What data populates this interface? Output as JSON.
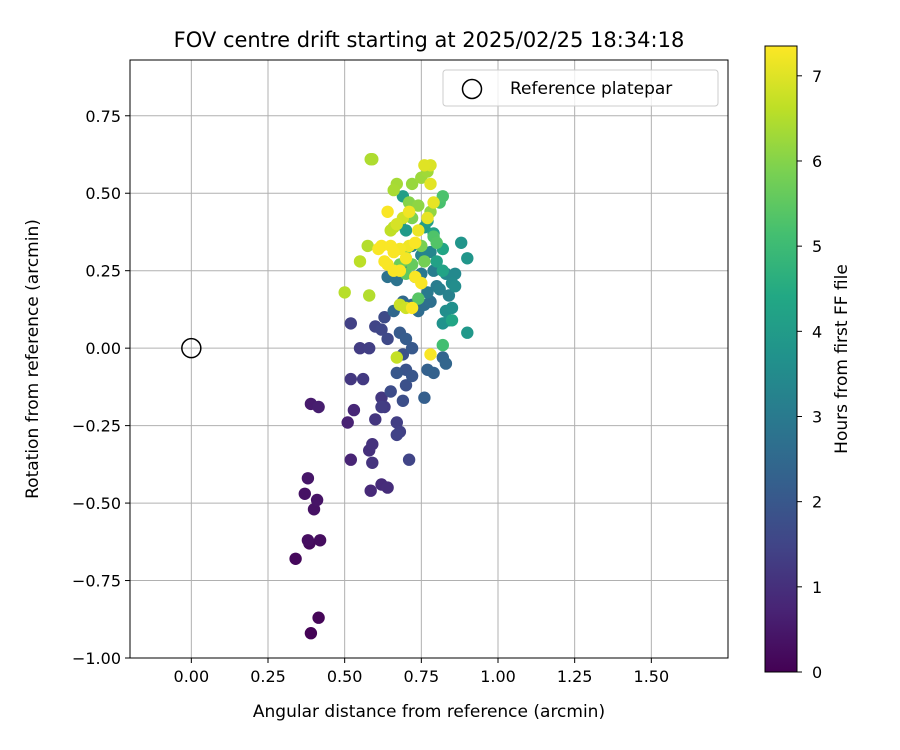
{
  "chart_data": {
    "type": "scatter",
    "title": "FOV centre drift starting at 2025/02/25 18:34:18",
    "xlabel": "Angular distance from reference (arcmin)",
    "ylabel": "Rotation from reference (arcmin)",
    "xlim": [
      -0.2,
      1.75
    ],
    "ylim": [
      -1.0,
      0.93
    ],
    "xticks": [
      0.0,
      0.25,
      0.5,
      0.75,
      1.0,
      1.25,
      1.5
    ],
    "xtick_labels": [
      "0.00",
      "0.25",
      "0.50",
      "0.75",
      "1.00",
      "1.25",
      "1.50"
    ],
    "yticks": [
      -1.0,
      -0.75,
      -0.5,
      -0.25,
      0.0,
      0.25,
      0.5,
      0.75
    ],
    "ytick_labels": [
      "−1.00",
      "−0.75",
      "−0.50",
      "−0.25",
      "0.00",
      "0.25",
      "0.50",
      "0.75"
    ],
    "grid": true,
    "legend": {
      "placement": "top-right",
      "entries": [
        "Reference platepar"
      ]
    },
    "colorbar": {
      "label": "Hours from first FF file",
      "colormap": "viridis",
      "range": [
        0,
        7.35
      ],
      "ticks": [
        0,
        1,
        2,
        3,
        4,
        5,
        6,
        7
      ],
      "tick_labels": [
        "0",
        "1",
        "2",
        "3",
        "4",
        "5",
        "6",
        "7"
      ]
    },
    "reference_point": {
      "x": 0.0,
      "y": 0.0
    },
    "series": [
      {
        "values_note": "each point: [x, y, hours]",
        "points": [
          [
            0.39,
            -0.92,
            0.05
          ],
          [
            0.415,
            -0.87,
            0.1
          ],
          [
            0.34,
            -0.68,
            0.15
          ],
          [
            0.385,
            -0.63,
            0.2
          ],
          [
            0.42,
            -0.62,
            0.25
          ],
          [
            0.38,
            -0.62,
            0.3
          ],
          [
            0.4,
            -0.52,
            0.35
          ],
          [
            0.37,
            -0.47,
            0.35
          ],
          [
            0.41,
            -0.49,
            0.4
          ],
          [
            0.38,
            -0.42,
            0.45
          ],
          [
            0.39,
            -0.18,
            0.55
          ],
          [
            0.415,
            -0.19,
            0.6
          ],
          [
            0.51,
            -0.24,
            0.7
          ],
          [
            0.52,
            -0.36,
            0.75
          ],
          [
            0.53,
            -0.2,
            0.8
          ],
          [
            0.585,
            -0.46,
            0.85
          ],
          [
            0.62,
            -0.44,
            0.9
          ],
          [
            0.64,
            -0.45,
            0.95
          ],
          [
            0.58,
            -0.33,
            1.0
          ],
          [
            0.59,
            -0.31,
            1.05
          ],
          [
            0.59,
            -0.37,
            1.1
          ],
          [
            0.6,
            -0.23,
            1.15
          ],
          [
            0.62,
            -0.16,
            1.2
          ],
          [
            0.63,
            -0.19,
            1.25
          ],
          [
            0.62,
            -0.19,
            1.3
          ],
          [
            0.67,
            -0.24,
            1.35
          ],
          [
            0.68,
            -0.27,
            1.4
          ],
          [
            0.67,
            -0.28,
            1.45
          ],
          [
            0.71,
            -0.36,
            1.5
          ],
          [
            0.52,
            -0.1,
            1.2
          ],
          [
            0.56,
            -0.1,
            1.25
          ],
          [
            0.55,
            0.0,
            1.3
          ],
          [
            0.58,
            0.0,
            1.35
          ],
          [
            0.52,
            0.08,
            1.4
          ],
          [
            0.6,
            0.07,
            1.5
          ],
          [
            0.62,
            0.06,
            1.55
          ],
          [
            0.64,
            0.03,
            1.6
          ],
          [
            0.63,
            0.1,
            1.65
          ],
          [
            0.65,
            -0.14,
            1.7
          ],
          [
            0.69,
            -0.17,
            1.75
          ],
          [
            0.7,
            -0.12,
            1.8
          ],
          [
            0.69,
            -0.02,
            1.85
          ],
          [
            0.7,
            -0.07,
            1.9
          ],
          [
            0.72,
            -0.09,
            1.95
          ],
          [
            0.67,
            -0.08,
            2.0
          ],
          [
            0.72,
            0.0,
            2.05
          ],
          [
            0.68,
            0.05,
            2.1
          ],
          [
            0.7,
            0.03,
            2.15
          ],
          [
            0.76,
            -0.16,
            2.2
          ],
          [
            0.77,
            -0.07,
            2.25
          ],
          [
            0.79,
            -0.08,
            2.3
          ],
          [
            0.82,
            -0.03,
            2.35
          ],
          [
            0.83,
            -0.05,
            2.4
          ],
          [
            0.66,
            0.12,
            2.45
          ],
          [
            0.69,
            0.15,
            2.5
          ],
          [
            0.72,
            0.14,
            2.55
          ],
          [
            0.74,
            0.12,
            2.6
          ],
          [
            0.76,
            0.14,
            2.65
          ],
          [
            0.78,
            0.15,
            2.7
          ],
          [
            0.64,
            0.23,
            2.75
          ],
          [
            0.67,
            0.22,
            2.8
          ],
          [
            0.7,
            0.26,
            2.85
          ],
          [
            0.73,
            0.23,
            2.9
          ],
          [
            0.75,
            0.24,
            2.95
          ],
          [
            0.77,
            0.18,
            3.0
          ],
          [
            0.8,
            0.2,
            3.05
          ],
          [
            0.79,
            0.25,
            3.1
          ],
          [
            0.81,
            0.19,
            3.15
          ],
          [
            0.84,
            0.17,
            3.2
          ],
          [
            0.72,
            0.33,
            3.25
          ],
          [
            0.75,
            0.3,
            3.3
          ],
          [
            0.78,
            0.31,
            3.35
          ],
          [
            0.83,
            0.24,
            3.4
          ],
          [
            0.86,
            0.24,
            3.45
          ],
          [
            0.85,
            0.21,
            3.5
          ],
          [
            0.86,
            0.2,
            3.55
          ],
          [
            0.83,
            0.12,
            3.6
          ],
          [
            0.85,
            0.13,
            3.65
          ],
          [
            0.82,
            0.08,
            3.7
          ],
          [
            0.84,
            0.09,
            3.75
          ],
          [
            0.88,
            0.34,
            3.8
          ],
          [
            0.9,
            0.29,
            3.85
          ],
          [
            0.9,
            0.05,
            3.9
          ],
          [
            0.68,
            0.4,
            3.9
          ],
          [
            0.7,
            0.38,
            3.95
          ],
          [
            0.76,
            0.39,
            4.0
          ],
          [
            0.77,
            0.41,
            4.05
          ],
          [
            0.69,
            0.49,
            4.1
          ],
          [
            0.79,
            0.37,
            4.15
          ],
          [
            0.8,
            0.28,
            4.2
          ],
          [
            0.82,
            0.25,
            4.25
          ],
          [
            0.82,
            0.32,
            4.3
          ],
          [
            0.85,
            0.09,
            4.3
          ],
          [
            0.82,
            0.01,
            5.1
          ],
          [
            0.81,
            0.47,
            5.2
          ],
          [
            0.82,
            0.49,
            5.25
          ],
          [
            0.79,
            0.36,
            5.3
          ],
          [
            0.8,
            0.34,
            5.35
          ],
          [
            0.74,
            0.16,
            5.4
          ],
          [
            0.7,
            0.24,
            5.5
          ],
          [
            0.72,
            0.27,
            5.6
          ],
          [
            0.68,
            0.27,
            5.7
          ],
          [
            0.7,
            0.32,
            5.75
          ],
          [
            0.76,
            0.28,
            5.8
          ],
          [
            0.75,
            0.33,
            5.85
          ],
          [
            0.72,
            0.42,
            5.9
          ],
          [
            0.71,
            0.47,
            6.0
          ],
          [
            0.74,
            0.46,
            6.1
          ],
          [
            0.78,
            0.44,
            6.15
          ],
          [
            0.72,
            0.53,
            6.2
          ],
          [
            0.75,
            0.55,
            6.25
          ],
          [
            0.77,
            0.57,
            6.3
          ],
          [
            0.67,
            0.53,
            6.35
          ],
          [
            0.66,
            0.51,
            6.4
          ],
          [
            0.59,
            0.61,
            6.45
          ],
          [
            0.585,
            0.61,
            6.45
          ],
          [
            0.575,
            0.33,
            6.5
          ],
          [
            0.58,
            0.17,
            6.5
          ],
          [
            0.5,
            0.18,
            6.55
          ],
          [
            0.55,
            0.28,
            6.6
          ],
          [
            0.66,
            0.39,
            6.6
          ],
          [
            0.65,
            0.38,
            6.65
          ],
          [
            0.67,
            -0.03,
            6.7
          ],
          [
            0.68,
            0.14,
            6.75
          ],
          [
            0.7,
            0.13,
            6.8
          ],
          [
            0.69,
            0.42,
            6.85
          ],
          [
            0.67,
            0.4,
            6.9
          ],
          [
            0.78,
            0.59,
            6.95
          ],
          [
            0.76,
            0.59,
            7.0
          ],
          [
            0.78,
            0.53,
            7.05
          ],
          [
            0.77,
            0.42,
            7.1
          ],
          [
            0.79,
            0.47,
            7.1
          ],
          [
            0.74,
            0.38,
            7.15
          ],
          [
            0.71,
            0.44,
            7.2
          ],
          [
            0.71,
            0.33,
            7.2
          ],
          [
            0.7,
            0.29,
            7.25
          ],
          [
            0.68,
            0.32,
            7.25
          ],
          [
            0.66,
            0.31,
            7.3
          ],
          [
            0.64,
            0.27,
            7.3
          ],
          [
            0.63,
            0.28,
            7.3
          ],
          [
            0.66,
            0.25,
            7.3
          ],
          [
            0.68,
            0.25,
            7.3
          ],
          [
            0.62,
            0.33,
            7.3
          ],
          [
            0.65,
            0.33,
            7.3
          ],
          [
            0.61,
            0.32,
            7.3
          ],
          [
            0.73,
            0.23,
            7.3
          ],
          [
            0.72,
            0.13,
            7.3
          ],
          [
            0.78,
            -0.02,
            7.3
          ],
          [
            0.64,
            0.44,
            7.3
          ],
          [
            0.73,
            0.34,
            7.3
          ],
          [
            0.75,
            0.21,
            7.3
          ]
        ]
      }
    ]
  }
}
